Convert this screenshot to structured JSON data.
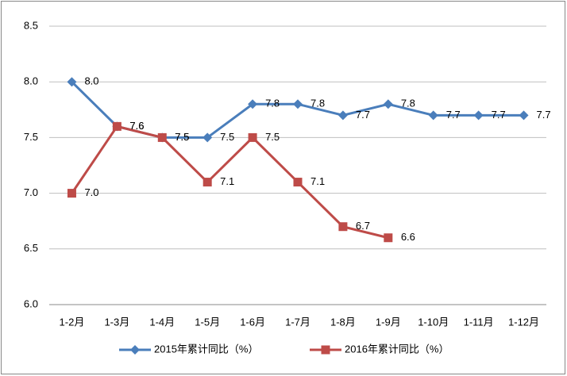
{
  "chart_data": {
    "type": "line",
    "categories": [
      "1-2月",
      "1-3月",
      "1-4月",
      "1-5月",
      "1-6月",
      "1-7月",
      "1-8月",
      "1-9月",
      "1-10月",
      "1-11月",
      "1-12月"
    ],
    "series": [
      {
        "name": "2015年累计同比（%）",
        "color": "#4a7ebb",
        "marker": "diamond",
        "values": [
          8.0,
          7.6,
          7.5,
          7.5,
          7.8,
          7.8,
          7.7,
          7.8,
          7.7,
          7.7,
          7.7
        ],
        "value_labels": [
          "8.0",
          "7.6",
          "7.5",
          "7.5",
          "7.8",
          "7.8",
          "7.7",
          "7.8",
          "7.7",
          "7.7",
          "7.7"
        ]
      },
      {
        "name": "2016年累计同比（%）",
        "color": "#be4b48",
        "marker": "square",
        "values": [
          7.0,
          7.6,
          7.5,
          7.1,
          7.5,
          7.1,
          6.7,
          6.6,
          null,
          null,
          null
        ],
        "value_labels": [
          "7.0",
          "7.6",
          "7.5",
          "7.1",
          "7.5",
          "7.1",
          "6.7",
          "6.6",
          null,
          null,
          null
        ]
      }
    ],
    "ylim": [
      6.0,
      8.5
    ],
    "yticks": [
      {
        "value": 6.0,
        "label": "6.0"
      },
      {
        "value": 6.5,
        "label": "6.5"
      },
      {
        "value": 7.0,
        "label": "7.0"
      },
      {
        "value": 7.5,
        "label": "7.5"
      },
      {
        "value": 8.0,
        "label": "8.0"
      },
      {
        "value": 8.5,
        "label": "8.5"
      }
    ],
    "grid": true,
    "legend": "bottom"
  }
}
